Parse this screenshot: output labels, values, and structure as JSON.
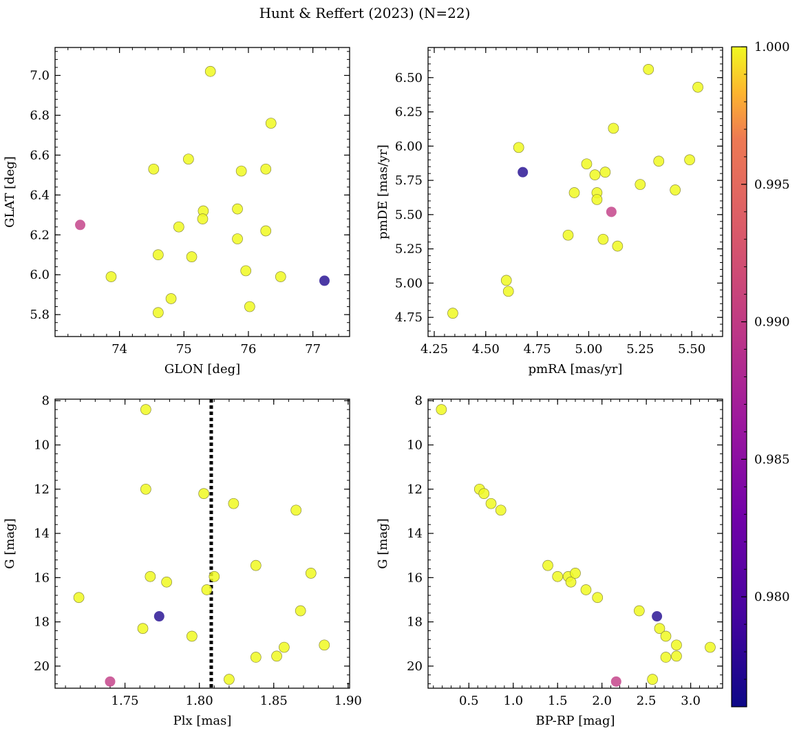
{
  "figure": {
    "title": "Hunt & Reffert (2023) (N=22)"
  },
  "colorbar": {
    "colormap": "plasma",
    "range": [
      0.976,
      1.0
    ],
    "ticks": [
      0.98,
      0.985,
      0.99,
      0.995,
      1.0
    ],
    "tick_labels": [
      "0.980",
      "0.985",
      "0.990",
      "0.995",
      "1.000"
    ]
  },
  "chart_data": [
    {
      "type": "scatter",
      "panel": "top-left",
      "xlabel": "GLON [deg]",
      "ylabel": "GLAT [deg]",
      "xlim": [
        73.0,
        77.57
      ],
      "ylim": [
        5.69,
        7.14
      ],
      "xticks": [
        74,
        75,
        76,
        77
      ],
      "xtick_labels": [
        "74",
        "75",
        "76",
        "77"
      ],
      "yticks": [
        5.8,
        6.0,
        6.2,
        6.4,
        6.6,
        6.8,
        7.0
      ],
      "ytick_labels": [
        "5.8",
        "6.0",
        "6.2",
        "6.4",
        "6.6",
        "6.8",
        "7.0"
      ],
      "x": [
        75.41,
        73.39,
        73.87,
        74.53,
        74.6,
        74.92,
        74.8,
        74.6,
        75.07,
        75.12,
        75.3,
        75.29,
        75.83,
        75.89,
        75.83,
        76.35,
        76.27,
        76.27,
        75.96,
        76.02,
        76.5,
        77.18
      ],
      "y": [
        7.02,
        6.25,
        5.99,
        6.53,
        6.1,
        6.24,
        5.88,
        5.81,
        6.58,
        6.09,
        6.32,
        6.28,
        6.33,
        6.52,
        6.18,
        6.76,
        6.53,
        6.22,
        6.02,
        5.84,
        5.99,
        5.97
      ],
      "color_values": [
        1.0,
        0.99,
        1.0,
        1.0,
        1.0,
        1.0,
        1.0,
        1.0,
        1.0,
        1.0,
        1.0,
        1.0,
        1.0,
        1.0,
        1.0,
        1.0,
        1.0,
        1.0,
        1.0,
        1.0,
        1.0,
        0.977
      ]
    },
    {
      "type": "scatter",
      "panel": "top-right",
      "xlabel": "pmRA [mas/yr]",
      "ylabel": "pmDE [mas/yr]",
      "xlim": [
        4.22,
        5.65
      ],
      "ylim": [
        4.61,
        6.72
      ],
      "xticks": [
        4.25,
        4.5,
        4.75,
        5.0,
        5.25,
        5.5
      ],
      "xtick_labels": [
        "4.25",
        "4.50",
        "4.75",
        "5.00",
        "5.25",
        "5.50"
      ],
      "yticks": [
        4.75,
        5.0,
        5.25,
        5.5,
        5.75,
        6.0,
        6.25,
        6.5
      ],
      "ytick_labels": [
        "4.75",
        "5.00",
        "5.25",
        "5.50",
        "5.75",
        "6.00",
        "6.25",
        "6.50"
      ],
      "x": [
        4.34,
        4.6,
        4.61,
        4.66,
        4.68,
        4.9,
        4.93,
        4.99,
        5.03,
        5.04,
        5.04,
        5.07,
        5.08,
        5.12,
        5.11,
        5.14,
        5.25,
        5.29,
        5.34,
        5.42,
        5.49,
        5.53
      ],
      "y": [
        4.78,
        5.02,
        4.94,
        5.99,
        5.81,
        5.35,
        5.66,
        5.87,
        5.79,
        5.66,
        5.61,
        5.32,
        5.81,
        6.13,
        5.52,
        5.27,
        5.72,
        6.56,
        5.89,
        5.68,
        5.9,
        6.43
      ],
      "color_values": [
        1.0,
        1.0,
        1.0,
        1.0,
        0.977,
        1.0,
        1.0,
        1.0,
        1.0,
        1.0,
        1.0,
        1.0,
        1.0,
        1.0,
        0.99,
        1.0,
        1.0,
        1.0,
        1.0,
        1.0,
        1.0,
        1.0
      ]
    },
    {
      "type": "scatter",
      "panel": "bottom-left",
      "xlabel": "Plx [mas]",
      "ylabel": "G [mag]",
      "xlim": [
        1.703,
        1.901
      ],
      "ylim": [
        21.0,
        7.93
      ],
      "y_inverted": true,
      "xticks": [
        1.75,
        1.8,
        1.85,
        1.9
      ],
      "xtick_labels": [
        "1.75",
        "1.80",
        "1.85",
        "1.90"
      ],
      "yticks": [
        8,
        10,
        12,
        14,
        16,
        18,
        20
      ],
      "ytick_labels": [
        "8",
        "10",
        "12",
        "14",
        "16",
        "18",
        "20"
      ],
      "vline": {
        "x": 1.808,
        "style": "dotted"
      },
      "x": [
        1.764,
        1.764,
        1.803,
        1.823,
        1.865,
        1.767,
        1.778,
        1.805,
        1.81,
        1.838,
        1.875,
        1.719,
        1.773,
        1.762,
        1.795,
        1.868,
        1.857,
        1.852,
        1.838,
        1.884,
        1.82,
        1.74
      ],
      "y": [
        8.4,
        12.0,
        12.2,
        12.65,
        12.95,
        15.95,
        16.2,
        16.55,
        15.95,
        15.45,
        15.8,
        16.9,
        17.75,
        18.3,
        18.65,
        17.5,
        19.15,
        19.55,
        19.6,
        19.05,
        20.6,
        20.7
      ],
      "color_values": [
        1.0,
        1.0,
        1.0,
        1.0,
        1.0,
        1.0,
        1.0,
        1.0,
        1.0,
        1.0,
        1.0,
        1.0,
        0.977,
        1.0,
        1.0,
        1.0,
        1.0,
        1.0,
        1.0,
        1.0,
        1.0,
        0.99
      ]
    },
    {
      "type": "scatter",
      "panel": "bottom-right",
      "xlabel": "BP-RP [mag]",
      "ylabel": "G [mag]",
      "xlim": [
        0.04,
        3.36
      ],
      "ylim": [
        21.0,
        7.93
      ],
      "y_inverted": true,
      "xticks": [
        0.5,
        1.0,
        1.5,
        2.0,
        2.5,
        3.0
      ],
      "xtick_labels": [
        "0.5",
        "1.0",
        "1.5",
        "2.0",
        "2.5",
        "3.0"
      ],
      "yticks": [
        8,
        10,
        12,
        14,
        16,
        18,
        20
      ],
      "ytick_labels": [
        "8",
        "10",
        "12",
        "14",
        "16",
        "18",
        "20"
      ],
      "x": [
        0.19,
        0.62,
        0.67,
        0.75,
        0.86,
        1.39,
        1.5,
        1.62,
        1.65,
        1.7,
        1.82,
        1.95,
        2.42,
        2.62,
        2.65,
        2.72,
        2.84,
        3.22,
        2.84,
        2.72,
        2.57,
        2.16
      ],
      "y": [
        8.4,
        12.0,
        12.2,
        12.65,
        12.95,
        15.45,
        15.95,
        15.95,
        16.2,
        15.8,
        16.55,
        16.9,
        17.5,
        17.75,
        18.3,
        18.65,
        19.05,
        19.15,
        19.55,
        19.6,
        20.6,
        20.7
      ],
      "color_values": [
        1.0,
        1.0,
        1.0,
        1.0,
        1.0,
        1.0,
        1.0,
        1.0,
        1.0,
        1.0,
        1.0,
        1.0,
        1.0,
        0.977,
        1.0,
        1.0,
        1.0,
        1.0,
        1.0,
        1.0,
        1.0,
        0.99
      ]
    }
  ]
}
